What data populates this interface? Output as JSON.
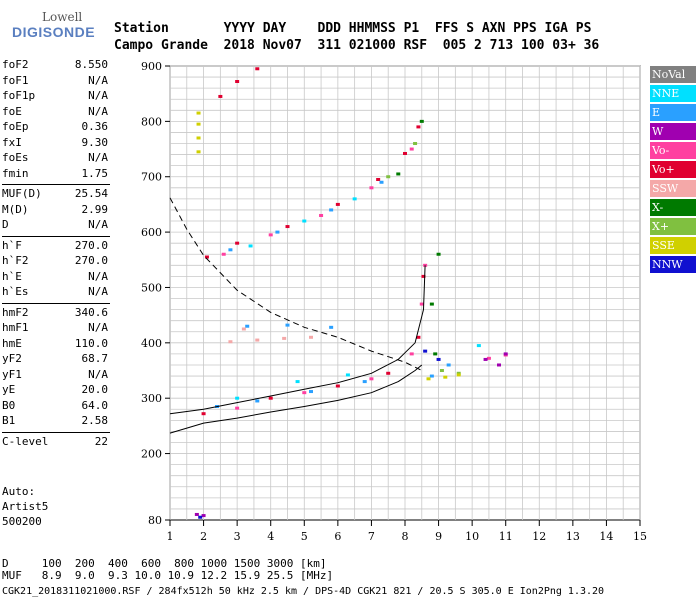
{
  "logo": {
    "line1": "Lowell",
    "line2": "DIGISONDE"
  },
  "header": {
    "labels": "Station       YYYY DAY    DDD HHMMSS P1  FFS S AXN PPS IGA PS",
    "values": "Campo Grande  2018 Nov07  311 021000 RSF  005 2 713 100 03+ 36"
  },
  "params": [
    {
      "k": "foF2",
      "v": "8.550"
    },
    {
      "k": "foF1",
      "v": "N/A"
    },
    {
      "k": "foF1p",
      "v": "N/A"
    },
    {
      "k": "foE",
      "v": "N/A"
    },
    {
      "k": "foEp",
      "v": "0.36"
    },
    {
      "k": "fxI",
      "v": "9.30"
    },
    {
      "k": "foEs",
      "v": "N/A"
    },
    {
      "k": "fmin",
      "v": "1.75"
    },
    {
      "k": "MUF(D)",
      "v": "25.54"
    },
    {
      "k": "M(D)",
      "v": "2.99"
    },
    {
      "k": "D",
      "v": "N/A"
    },
    {
      "k": "h`F",
      "v": "270.0"
    },
    {
      "k": "h`F2",
      "v": "270.0"
    },
    {
      "k": "h`E",
      "v": "N/A"
    },
    {
      "k": "h`Es",
      "v": "N/A"
    },
    {
      "k": "hmF2",
      "v": "340.6"
    },
    {
      "k": "hmF1",
      "v": "N/A"
    },
    {
      "k": "hmE",
      "v": "110.0"
    },
    {
      "k": "yF2",
      "v": "68.7"
    },
    {
      "k": "yF1",
      "v": "N/A"
    },
    {
      "k": "yE",
      "v": "20.0"
    },
    {
      "k": "B0",
      "v": "64.0"
    },
    {
      "k": "B1",
      "v": "2.58"
    },
    {
      "k": "C-level",
      "v": "22"
    }
  ],
  "auto": {
    "l1": "Auto:",
    "l2": "Artist5",
    "l3": "500200"
  },
  "legend": [
    {
      "label": "NoVal",
      "color": "#808080"
    },
    {
      "label": "NNE",
      "color": "#00e0ff"
    },
    {
      "label": "E",
      "color": "#2aa0ff"
    },
    {
      "label": "W",
      "color": "#a000b0"
    },
    {
      "label": "Vo-",
      "color": "#ff40a0"
    },
    {
      "label": "Vo+",
      "color": "#e00030"
    },
    {
      "label": "SSW",
      "color": "#f4a8a8"
    },
    {
      "label": "X-",
      "color": "#007a00"
    },
    {
      "label": "X+",
      "color": "#80c040"
    },
    {
      "label": "SSE",
      "color": "#d0d000"
    },
    {
      "label": "NNW",
      "color": "#1010d0"
    }
  ],
  "footer": {
    "l1": "D     100  200  400  600  800 1000 1500 3000 [km]",
    "l2": "MUF   8.9  9.0  9.3 10.0 10.9 12.2 15.9 25.5 [MHz]",
    "l3": "CGK21_2018311021000.RSF / 284fx512h 50 kHz 2.5 km / DPS-4D CGK21 821 / 20.5 S 305.0 E Ion2Png 1.3.20"
  },
  "chart_data": {
    "type": "scatter",
    "xlim": [
      1,
      15
    ],
    "ylim": [
      80,
      900
    ],
    "xticks": [
      1,
      2,
      3,
      4,
      5,
      6,
      7,
      8,
      9,
      10,
      11,
      12,
      13,
      14,
      15
    ],
    "yticks": [
      80,
      200,
      300,
      400,
      500,
      600,
      700,
      800,
      900
    ],
    "grid": true,
    "series": [
      {
        "name": "Vo+",
        "color": "#e00030",
        "points": [
          [
            2.5,
            845
          ],
          [
            3.0,
            872
          ],
          [
            3.6,
            895
          ],
          [
            2.1,
            555
          ],
          [
            3.0,
            580
          ],
          [
            4.5,
            610
          ],
          [
            6.0,
            650
          ],
          [
            7.2,
            695
          ],
          [
            8.0,
            742
          ],
          [
            8.4,
            790
          ],
          [
            2.0,
            272
          ],
          [
            4.0,
            300
          ],
          [
            6.0,
            322
          ],
          [
            7.5,
            345
          ],
          [
            8.4,
            410
          ],
          [
            8.55,
            520
          ]
        ]
      },
      {
        "name": "Vo-",
        "color": "#ff40a0",
        "points": [
          [
            2.6,
            560
          ],
          [
            4.0,
            595
          ],
          [
            5.5,
            630
          ],
          [
            7.0,
            680
          ],
          [
            8.2,
            750
          ],
          [
            3.0,
            282
          ],
          [
            5.0,
            310
          ],
          [
            7.0,
            335
          ],
          [
            8.2,
            380
          ],
          [
            8.5,
            470
          ],
          [
            8.6,
            540
          ],
          [
            10.5,
            372
          ],
          [
            11.0,
            378
          ]
        ]
      },
      {
        "name": "E",
        "color": "#2aa0ff",
        "points": [
          [
            2.8,
            568
          ],
          [
            4.2,
            600
          ],
          [
            5.8,
            640
          ],
          [
            7.3,
            690
          ],
          [
            2.4,
            285
          ],
          [
            3.6,
            295
          ],
          [
            5.2,
            312
          ],
          [
            6.8,
            330
          ],
          [
            3.3,
            430
          ],
          [
            4.5,
            432
          ],
          [
            5.8,
            428
          ],
          [
            8.8,
            340
          ],
          [
            9.3,
            360
          ]
        ]
      },
      {
        "name": "NNE",
        "color": "#00e0ff",
        "points": [
          [
            3.4,
            575
          ],
          [
            5.0,
            620
          ],
          [
            6.5,
            660
          ],
          [
            3.0,
            300
          ],
          [
            4.8,
            330
          ],
          [
            6.3,
            342
          ],
          [
            10.2,
            395
          ]
        ]
      },
      {
        "name": "X-",
        "color": "#007a00",
        "points": [
          [
            7.8,
            705
          ],
          [
            8.5,
            800
          ],
          [
            8.8,
            470
          ],
          [
            9.0,
            560
          ],
          [
            8.9,
            380
          ]
        ]
      },
      {
        "name": "X+",
        "color": "#80c040",
        "points": [
          [
            7.5,
            700
          ],
          [
            8.3,
            760
          ],
          [
            9.1,
            350
          ],
          [
            9.6,
            345
          ]
        ]
      },
      {
        "name": "SSW",
        "color": "#f4a8a8",
        "points": [
          [
            2.8,
            402
          ],
          [
            3.6,
            405
          ],
          [
            4.4,
            408
          ],
          [
            5.2,
            410
          ],
          [
            3.2,
            425
          ]
        ]
      },
      {
        "name": "SSE",
        "color": "#d0d000",
        "points": [
          [
            1.85,
            745
          ],
          [
            1.85,
            770
          ],
          [
            1.85,
            795
          ],
          [
            1.85,
            815
          ],
          [
            8.7,
            335
          ],
          [
            9.2,
            338
          ],
          [
            9.6,
            342
          ]
        ]
      },
      {
        "name": "W",
        "color": "#a000b0",
        "points": [
          [
            10.4,
            370
          ],
          [
            10.8,
            360
          ],
          [
            11.0,
            380
          ],
          [
            1.8,
            90
          ],
          [
            2.0,
            88
          ]
        ]
      },
      {
        "name": "NNW",
        "color": "#1010d0",
        "points": [
          [
            8.6,
            385
          ],
          [
            9.0,
            370
          ],
          [
            1.9,
            85
          ]
        ]
      }
    ],
    "curves": [
      {
        "name": "profile_upper",
        "style": "solid",
        "points": [
          [
            1.0,
            272
          ],
          [
            2,
            280
          ],
          [
            3,
            292
          ],
          [
            4,
            304
          ],
          [
            5,
            316
          ],
          [
            6,
            328
          ],
          [
            7,
            345
          ],
          [
            7.8,
            370
          ],
          [
            8.3,
            400
          ],
          [
            8.55,
            460
          ],
          [
            8.6,
            540
          ]
        ]
      },
      {
        "name": "profile_lower",
        "style": "solid",
        "points": [
          [
            1.0,
            237
          ],
          [
            2,
            255
          ],
          [
            3,
            264
          ],
          [
            4,
            275
          ],
          [
            5,
            285
          ],
          [
            6,
            296
          ],
          [
            7,
            310
          ],
          [
            7.8,
            330
          ],
          [
            8.3,
            350
          ],
          [
            8.5,
            360
          ]
        ]
      },
      {
        "name": "muf_dashed",
        "style": "dashed",
        "points": [
          [
            1.0,
            662
          ],
          [
            1.5,
            605
          ],
          [
            2.0,
            558
          ],
          [
            3.0,
            495
          ],
          [
            4.0,
            455
          ],
          [
            5.0,
            428
          ],
          [
            6.0,
            410
          ],
          [
            7.0,
            385
          ],
          [
            8.0,
            365
          ],
          [
            8.5,
            350
          ]
        ]
      }
    ]
  }
}
